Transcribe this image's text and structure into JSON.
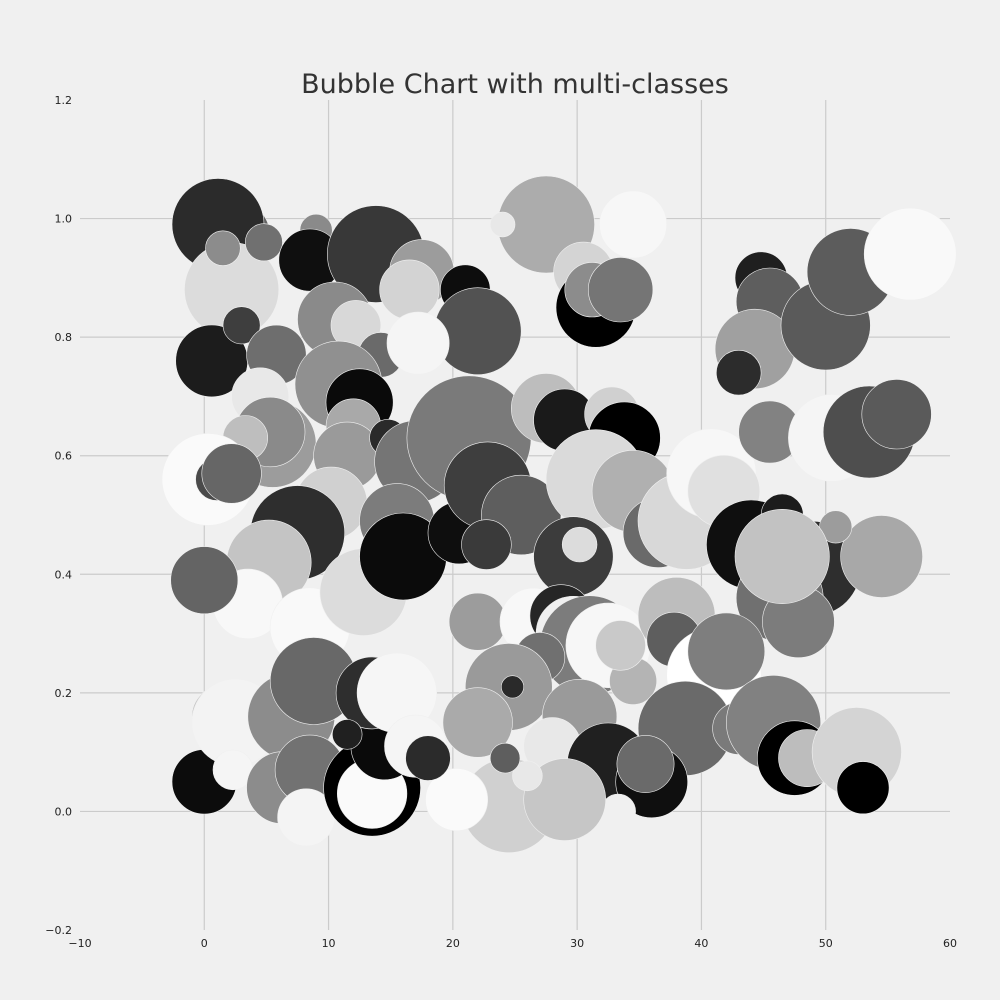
{
  "chart_data": {
    "type": "scatter",
    "subtype": "bubble",
    "title": "Bubble Chart with multi-classes",
    "xlabel": "",
    "ylabel": "",
    "xlim": [
      -10,
      60
    ],
    "ylim": [
      -0.2,
      1.2
    ],
    "x_ticks": [
      "−10",
      "0",
      "10",
      "20",
      "30",
      "40",
      "50",
      "60"
    ],
    "x_tick_values": [
      -10,
      0,
      10,
      20,
      30,
      40,
      50,
      60
    ],
    "y_ticks": [
      "−0.2",
      "0.0",
      "0.2",
      "0.4",
      "0.6",
      "0.8",
      "1.0",
      "1.2"
    ],
    "y_tick_values": [
      -0.2,
      0.0,
      0.2,
      0.4,
      0.6,
      0.8,
      1.0,
      1.2
    ],
    "grid": true,
    "legend": "none",
    "size_unit": "x-axis data units (radius)",
    "points": [
      {
        "x": 27.5,
        "y": 0.99,
        "r": 3.9,
        "color": "#acacac"
      },
      {
        "x": 2.3,
        "y": 0.97,
        "r": 3.0,
        "color": "#626262"
      },
      {
        "x": 1.0,
        "y": 0.96,
        "r": 2.5,
        "color": "#f9f9f9"
      },
      {
        "x": 1.1,
        "y": 0.99,
        "r": 3.7,
        "color": "#2b2b2b"
      },
      {
        "x": 2.2,
        "y": 0.88,
        "r": 3.8,
        "color": "#dcdcdc"
      },
      {
        "x": 1.5,
        "y": 0.95,
        "r": 1.4,
        "color": "#8c8c8c"
      },
      {
        "x": 4.8,
        "y": 0.96,
        "r": 1.5,
        "color": "#707070"
      },
      {
        "x": 9.0,
        "y": 0.98,
        "r": 1.3,
        "color": "#8a8a8a"
      },
      {
        "x": 8.5,
        "y": 0.93,
        "r": 2.5,
        "color": "#0f0f0f"
      },
      {
        "x": 13.8,
        "y": 0.94,
        "r": 3.9,
        "color": "#383838"
      },
      {
        "x": 17.5,
        "y": 0.91,
        "r": 2.6,
        "color": "#9c9c9c"
      },
      {
        "x": 16.5,
        "y": 0.88,
        "r": 2.4,
        "color": "#d3d3d3"
      },
      {
        "x": 21.0,
        "y": 0.88,
        "r": 2.0,
        "color": "#0d0d0d"
      },
      {
        "x": 22.0,
        "y": 0.81,
        "r": 3.5,
        "color": "#525252"
      },
      {
        "x": 10.5,
        "y": 0.83,
        "r": 3.0,
        "color": "#8a8a8a"
      },
      {
        "x": 12.2,
        "y": 0.82,
        "r": 2.0,
        "color": "#d8d8d8"
      },
      {
        "x": 14.2,
        "y": 0.77,
        "r": 1.8,
        "color": "#6a6a6a"
      },
      {
        "x": 17.2,
        "y": 0.79,
        "r": 2.5,
        "color": "#f5f5f5"
      },
      {
        "x": 24.0,
        "y": 0.99,
        "r": 1.0,
        "color": "#e8e8e8"
      },
      {
        "x": 34.5,
        "y": 0.99,
        "r": 2.7,
        "color": "#f7f7f7"
      },
      {
        "x": 30.5,
        "y": 0.91,
        "r": 2.4,
        "color": "#d4d4d4"
      },
      {
        "x": 31.5,
        "y": 0.85,
        "r": 3.2,
        "color": "#000000"
      },
      {
        "x": 31.2,
        "y": 0.88,
        "r": 2.2,
        "color": "#8c8c8c"
      },
      {
        "x": 33.5,
        "y": 0.88,
        "r": 2.6,
        "color": "#757575"
      },
      {
        "x": 44.8,
        "y": 0.9,
        "r": 2.1,
        "color": "#1f1f1f"
      },
      {
        "x": 45.5,
        "y": 0.86,
        "r": 2.7,
        "color": "#5e5e5e"
      },
      {
        "x": 44.3,
        "y": 0.78,
        "r": 3.2,
        "color": "#a0a0a0"
      },
      {
        "x": 43.0,
        "y": 0.74,
        "r": 1.8,
        "color": "#2c2c2c"
      },
      {
        "x": 50.0,
        "y": 0.82,
        "r": 3.6,
        "color": "#5a5a5a"
      },
      {
        "x": 52.0,
        "y": 0.91,
        "r": 3.5,
        "color": "#5c5c5c"
      },
      {
        "x": 56.8,
        "y": 0.94,
        "r": 3.7,
        "color": "#f9f9f9"
      },
      {
        "x": 0.6,
        "y": 0.76,
        "r": 2.9,
        "color": "#1c1c1c"
      },
      {
        "x": 3.0,
        "y": 0.82,
        "r": 1.5,
        "color": "#3e3e3e"
      },
      {
        "x": 5.8,
        "y": 0.77,
        "r": 2.4,
        "color": "#6e6e6e"
      },
      {
        "x": 4.5,
        "y": 0.7,
        "r": 2.3,
        "color": "#e8e8e8"
      },
      {
        "x": 5.5,
        "y": 0.62,
        "r": 3.5,
        "color": "#9c9c9c"
      },
      {
        "x": 5.3,
        "y": 0.64,
        "r": 2.8,
        "color": "#8a8a8a"
      },
      {
        "x": 3.3,
        "y": 0.63,
        "r": 1.8,
        "color": "#bebebe"
      },
      {
        "x": 0.3,
        "y": 0.56,
        "r": 3.7,
        "color": "#fafafa"
      },
      {
        "x": 1.0,
        "y": 0.56,
        "r": 1.7,
        "color": "#4a4a4a"
      },
      {
        "x": 2.2,
        "y": 0.57,
        "r": 2.4,
        "color": "#666666"
      },
      {
        "x": 10.8,
        "y": 0.72,
        "r": 3.5,
        "color": "#909090"
      },
      {
        "x": 12.5,
        "y": 0.69,
        "r": 2.7,
        "color": "#0a0a0a"
      },
      {
        "x": 12.0,
        "y": 0.65,
        "r": 2.2,
        "color": "#a9a9a9"
      },
      {
        "x": 11.5,
        "y": 0.6,
        "r": 2.7,
        "color": "#9a9a9a"
      },
      {
        "x": 14.8,
        "y": 0.63,
        "r": 1.5,
        "color": "#2a2a2a"
      },
      {
        "x": 17.0,
        "y": 0.59,
        "r": 3.3,
        "color": "#757575"
      },
      {
        "x": 10.2,
        "y": 0.52,
        "r": 2.9,
        "color": "#d0d0d0"
      },
      {
        "x": 7.5,
        "y": 0.47,
        "r": 3.8,
        "color": "#2e2e2e"
      },
      {
        "x": 5.2,
        "y": 0.42,
        "r": 3.4,
        "color": "#c4c4c4"
      },
      {
        "x": 3.5,
        "y": 0.35,
        "r": 2.8,
        "color": "#f8f8f8"
      },
      {
        "x": 0.0,
        "y": 0.39,
        "r": 2.7,
        "color": "#646464"
      },
      {
        "x": 8.5,
        "y": 0.31,
        "r": 3.2,
        "color": "#f9f9f9"
      },
      {
        "x": 12.8,
        "y": 0.37,
        "r": 3.5,
        "color": "#dcdcdc"
      },
      {
        "x": 15.5,
        "y": 0.49,
        "r": 3.0,
        "color": "#7c7c7c"
      },
      {
        "x": 16.0,
        "y": 0.43,
        "r": 3.5,
        "color": "#0b0b0b"
      },
      {
        "x": 20.5,
        "y": 0.59,
        "r": 1.8,
        "color": "#f5f5f5"
      },
      {
        "x": 21.3,
        "y": 0.63,
        "r": 5.0,
        "color": "#7a7a7a"
      },
      {
        "x": 23.0,
        "y": 0.54,
        "r": 2.8,
        "color": "#8c8c8c"
      },
      {
        "x": 20.5,
        "y": 0.47,
        "r": 2.5,
        "color": "#0e0e0e"
      },
      {
        "x": 22.8,
        "y": 0.55,
        "r": 3.5,
        "color": "#3e3e3e"
      },
      {
        "x": 25.5,
        "y": 0.5,
        "r": 3.2,
        "color": "#5e5e5e"
      },
      {
        "x": 22.7,
        "y": 0.45,
        "r": 2.0,
        "color": "#3a3a3a"
      },
      {
        "x": 27.5,
        "y": 0.68,
        "r": 2.8,
        "color": "#bdbdbd"
      },
      {
        "x": 29.0,
        "y": 0.66,
        "r": 2.5,
        "color": "#1a1a1a"
      },
      {
        "x": 32.8,
        "y": 0.67,
        "r": 2.2,
        "color": "#d0d0d0"
      },
      {
        "x": 33.8,
        "y": 0.63,
        "r": 2.9,
        "color": "#000000"
      },
      {
        "x": 31.5,
        "y": 0.56,
        "r": 4.0,
        "color": "#dadada"
      },
      {
        "x": 34.5,
        "y": 0.54,
        "r": 3.3,
        "color": "#b0b0b0"
      },
      {
        "x": 29.7,
        "y": 0.43,
        "r": 3.2,
        "color": "#3c3c3c"
      },
      {
        "x": 30.2,
        "y": 0.45,
        "r": 1.4,
        "color": "#dcdcdc"
      },
      {
        "x": 36.5,
        "y": 0.47,
        "r": 2.8,
        "color": "#6a6a6a"
      },
      {
        "x": 38.8,
        "y": 0.49,
        "r": 3.9,
        "color": "#d8d8d8"
      },
      {
        "x": 40.8,
        "y": 0.57,
        "r": 3.6,
        "color": "#f7f7f7"
      },
      {
        "x": 41.8,
        "y": 0.54,
        "r": 2.9,
        "color": "#e0e0e0"
      },
      {
        "x": 44.0,
        "y": 0.45,
        "r": 3.6,
        "color": "#0f0f0f"
      },
      {
        "x": 46.5,
        "y": 0.5,
        "r": 1.7,
        "color": "#1c1c1c"
      },
      {
        "x": 45.5,
        "y": 0.64,
        "r": 2.5,
        "color": "#828282"
      },
      {
        "x": 50.5,
        "y": 0.63,
        "r": 3.5,
        "color": "#f5f5f5"
      },
      {
        "x": 53.5,
        "y": 0.64,
        "r": 3.7,
        "color": "#4e4e4e"
      },
      {
        "x": 55.7,
        "y": 0.67,
        "r": 2.8,
        "color": "#5a5a5a"
      },
      {
        "x": 49.0,
        "y": 0.41,
        "r": 3.8,
        "color": "#2e2e2e"
      },
      {
        "x": 54.5,
        "y": 0.43,
        "r": 3.3,
        "color": "#a8a8a8"
      },
      {
        "x": 50.8,
        "y": 0.48,
        "r": 1.3,
        "color": "#9c9c9c"
      },
      {
        "x": 46.3,
        "y": 0.36,
        "r": 3.5,
        "color": "#707070"
      },
      {
        "x": 47.8,
        "y": 0.32,
        "r": 2.9,
        "color": "#7c7c7c"
      },
      {
        "x": 46.5,
        "y": 0.43,
        "r": 3.8,
        "color": "#c2c2c2"
      },
      {
        "x": 22.0,
        "y": 0.32,
        "r": 2.3,
        "color": "#9c9c9c"
      },
      {
        "x": 26.5,
        "y": 0.32,
        "r": 2.7,
        "color": "#f8f8f8"
      },
      {
        "x": 28.7,
        "y": 0.33,
        "r": 2.5,
        "color": "#262626"
      },
      {
        "x": 29.7,
        "y": 0.3,
        "r": 3.0,
        "color": "#f0f0f0"
      },
      {
        "x": 31.0,
        "y": 0.28,
        "r": 4.0,
        "color": "#7c7c7c"
      },
      {
        "x": 32.5,
        "y": 0.28,
        "r": 3.4,
        "color": "#f7f7f7"
      },
      {
        "x": 38.0,
        "y": 0.33,
        "r": 3.1,
        "color": "#bdbdbd"
      },
      {
        "x": 37.8,
        "y": 0.29,
        "r": 2.2,
        "color": "#5e5e5e"
      },
      {
        "x": 27.0,
        "y": 0.26,
        "r": 2.0,
        "color": "#707070"
      },
      {
        "x": 34.5,
        "y": 0.22,
        "r": 1.9,
        "color": "#b4b4b4"
      },
      {
        "x": 24.5,
        "y": 0.21,
        "r": 3.5,
        "color": "#9a9a9a"
      },
      {
        "x": 24.8,
        "y": 0.21,
        "r": 0.9,
        "color": "#2a2a2a"
      },
      {
        "x": 22.0,
        "y": 0.15,
        "r": 2.8,
        "color": "#aaaaaa"
      },
      {
        "x": 41.0,
        "y": 0.23,
        "r": 3.8,
        "color": "#ffffff"
      },
      {
        "x": 42.0,
        "y": 0.27,
        "r": 3.1,
        "color": "#7e7e7e"
      },
      {
        "x": 38.7,
        "y": 0.14,
        "r": 3.8,
        "color": "#6a6a6a"
      },
      {
        "x": 43.0,
        "y": 0.14,
        "r": 2.1,
        "color": "#7a7a7a"
      },
      {
        "x": 45.8,
        "y": 0.15,
        "r": 3.8,
        "color": "#818181"
      },
      {
        "x": 47.5,
        "y": 0.09,
        "r": 3.0,
        "color": "#000000"
      },
      {
        "x": 48.5,
        "y": 0.09,
        "r": 2.3,
        "color": "#bdbdbd"
      },
      {
        "x": 52.5,
        "y": 0.1,
        "r": 3.6,
        "color": "#d4d4d4"
      },
      {
        "x": 53.0,
        "y": 0.04,
        "r": 2.1,
        "color": "#000000"
      },
      {
        "x": 30.2,
        "y": 0.16,
        "r": 3.0,
        "color": "#9a9a9a"
      },
      {
        "x": 28.0,
        "y": 0.11,
        "r": 2.3,
        "color": "#e8e8e8"
      },
      {
        "x": 32.5,
        "y": 0.08,
        "r": 3.3,
        "color": "#202020"
      },
      {
        "x": 36.0,
        "y": 0.05,
        "r": 2.9,
        "color": "#0f0f0f"
      },
      {
        "x": 35.5,
        "y": 0.08,
        "r": 2.3,
        "color": "#6a6a6a"
      },
      {
        "x": 33.3,
        "y": 0.0,
        "r": 1.4,
        "color": "#f0f0f0"
      },
      {
        "x": 24.5,
        "y": 0.01,
        "r": 3.8,
        "color": "#d0d0d0"
      },
      {
        "x": 29.0,
        "y": 0.02,
        "r": 3.3,
        "color": "#c6c6c6"
      },
      {
        "x": 26.0,
        "y": 0.06,
        "r": 1.2,
        "color": "#e8e8e8"
      },
      {
        "x": 24.2,
        "y": 0.09,
        "r": 1.2,
        "color": "#5e5e5e"
      },
      {
        "x": 20.3,
        "y": 0.02,
        "r": 2.5,
        "color": "#fafafa"
      },
      {
        "x": 0.0,
        "y": 0.05,
        "r": 2.6,
        "color": "#0c0c0c"
      },
      {
        "x": 1.5,
        "y": 0.16,
        "r": 2.5,
        "color": "#c7c7c7"
      },
      {
        "x": 2.5,
        "y": 0.15,
        "r": 3.5,
        "color": "#f3f3f3"
      },
      {
        "x": 2.3,
        "y": 0.07,
        "r": 1.6,
        "color": "#f5f5f5"
      },
      {
        "x": 7.0,
        "y": 0.16,
        "r": 3.5,
        "color": "#8c8c8c"
      },
      {
        "x": 8.8,
        "y": 0.22,
        "r": 3.5,
        "color": "#686868"
      },
      {
        "x": 6.3,
        "y": 0.04,
        "r": 2.9,
        "color": "#8c8c8c"
      },
      {
        "x": 8.5,
        "y": 0.07,
        "r": 2.8,
        "color": "#727272"
      },
      {
        "x": 8.2,
        "y": -0.01,
        "r": 2.3,
        "color": "#f4f4f4"
      },
      {
        "x": 13.5,
        "y": 0.04,
        "r": 3.9,
        "color": "#000000"
      },
      {
        "x": 13.5,
        "y": 0.03,
        "r": 2.8,
        "color": "#fafafa"
      },
      {
        "x": 14.5,
        "y": 0.11,
        "r": 2.7,
        "color": "#0a0a0a"
      },
      {
        "x": 13.5,
        "y": 0.2,
        "r": 2.9,
        "color": "#2e2e2e"
      },
      {
        "x": 15.5,
        "y": 0.2,
        "r": 3.2,
        "color": "#f6f6f6"
      },
      {
        "x": 17.0,
        "y": 0.11,
        "r": 2.5,
        "color": "#f5f5f5"
      },
      {
        "x": 18.0,
        "y": 0.09,
        "r": 1.8,
        "color": "#2b2b2b"
      },
      {
        "x": 11.5,
        "y": 0.13,
        "r": 1.2,
        "color": "#202020"
      },
      {
        "x": 33.5,
        "y": 0.28,
        "r": 2.0,
        "color": "#c9c9c9"
      }
    ]
  }
}
